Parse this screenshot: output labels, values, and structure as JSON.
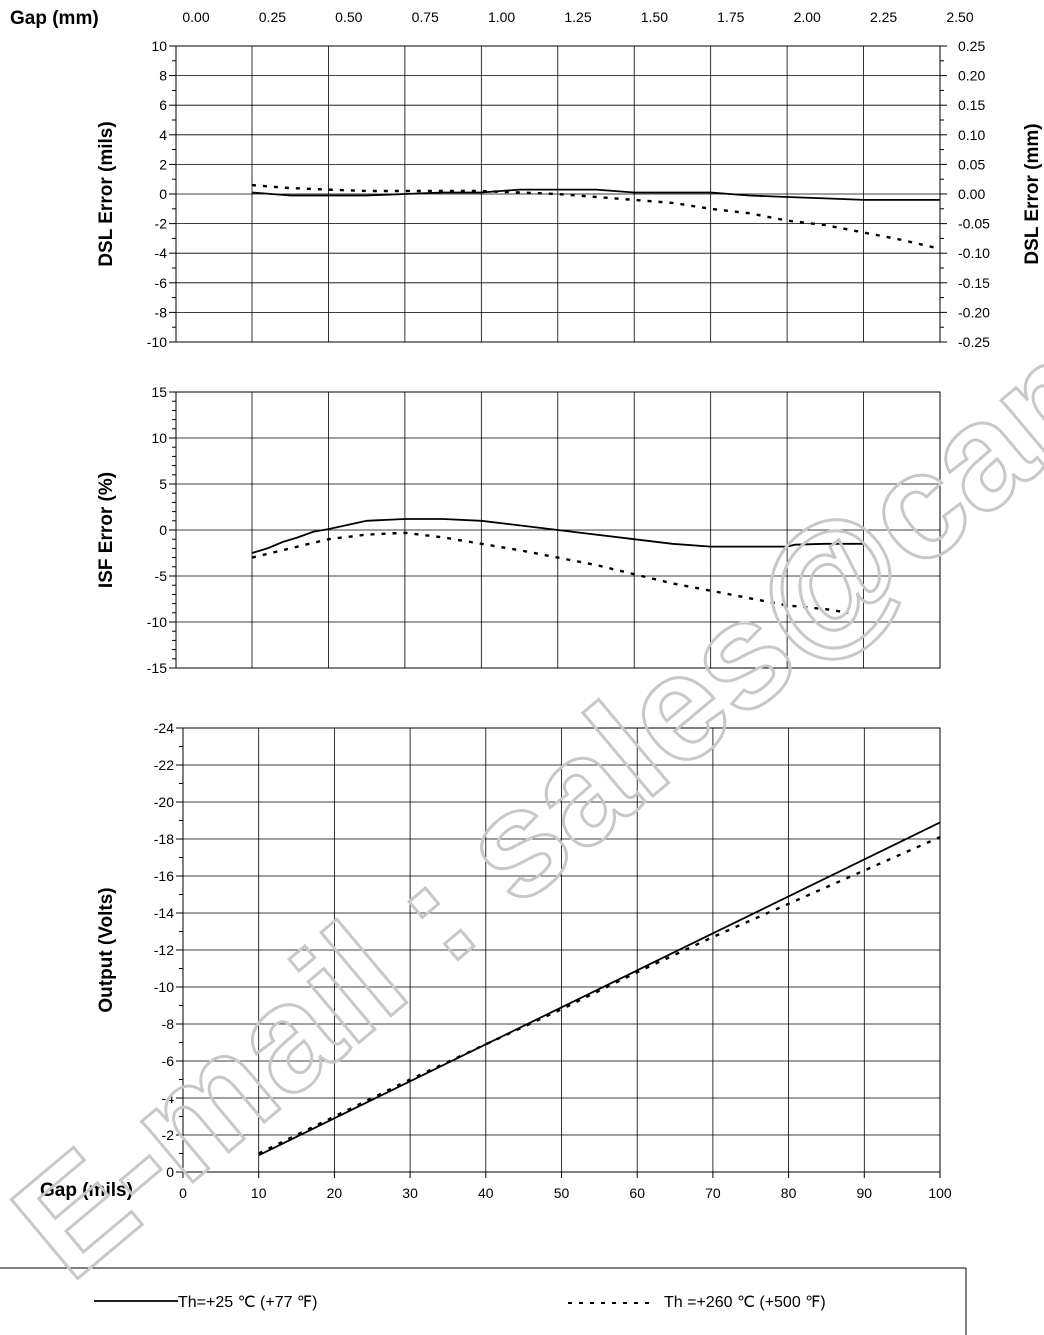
{
  "watermark": "E-mail : sales@cambia.cn",
  "chart_data": [
    {
      "type": "line",
      "panel": "dsl-error",
      "top_axis_title": "Gap (mm)",
      "top_ticks": [
        "0.00",
        "0.25",
        "0.50",
        "0.75",
        "1.00",
        "1.25",
        "1.50",
        "1.75",
        "2.00",
        "2.25",
        "2.50"
      ],
      "ylabel": "DSL Error (mils)",
      "y2label": "DSL Error (mm)",
      "xlim": [
        0,
        100
      ],
      "ylim": [
        -10,
        10
      ],
      "y_ticks": [
        "10",
        "8",
        "6",
        "4",
        "2",
        "0",
        "-2",
        "-4",
        "-6",
        "-8",
        "-10"
      ],
      "y2_ticks": [
        "0.25",
        "0.20",
        "0.15",
        "0.10",
        "0.05",
        "0.00",
        "-0.05",
        "-0.10",
        "-0.15",
        "-0.20",
        "-0.25"
      ],
      "series": [
        {
          "name": "Th=+25 ℃ (+77 ℉)",
          "style": "solid",
          "x": [
            10,
            15,
            20,
            25,
            30,
            35,
            40,
            45,
            50,
            55,
            60,
            65,
            70,
            75,
            80,
            85,
            90,
            95,
            100
          ],
          "y": [
            0.1,
            -0.1,
            -0.1,
            -0.1,
            0.0,
            0.1,
            0.1,
            0.3,
            0.3,
            0.3,
            0.1,
            0.1,
            0.1,
            -0.1,
            -0.2,
            -0.3,
            -0.4,
            -0.4,
            -0.4
          ]
        },
        {
          "name": "Th =+260 ℃ (+500 ℉)",
          "style": "dotted",
          "x": [
            10,
            15,
            20,
            25,
            30,
            35,
            40,
            45,
            50,
            55,
            60,
            65,
            70,
            75,
            80,
            85,
            90,
            95,
            100
          ],
          "y": [
            0.6,
            0.4,
            0.3,
            0.2,
            0.2,
            0.2,
            0.2,
            0.1,
            0.0,
            -0.2,
            -0.4,
            -0.6,
            -1.0,
            -1.3,
            -1.8,
            -2.1,
            -2.6,
            -3.1,
            -3.7
          ]
        }
      ]
    },
    {
      "type": "line",
      "panel": "isf-error",
      "ylabel": "ISF Error (%)",
      "xlim": [
        0,
        100
      ],
      "ylim": [
        -15,
        15
      ],
      "y_ticks": [
        "15",
        "10",
        "5",
        "0",
        "-5",
        "-10",
        "-15"
      ],
      "series": [
        {
          "name": "Th=+25 ℃ (+77 ℉)",
          "style": "solid",
          "x": [
            10,
            12,
            14,
            16,
            18,
            20,
            25,
            30,
            35,
            40,
            45,
            50,
            55,
            60,
            65,
            70,
            75,
            80,
            81,
            85,
            90
          ],
          "y": [
            -2.5,
            -2.0,
            -1.3,
            -0.8,
            -0.2,
            0.1,
            1.0,
            1.2,
            1.2,
            1.0,
            0.5,
            0.0,
            -0.5,
            -1.0,
            -1.5,
            -1.8,
            -1.8,
            -1.8,
            -1.6,
            -1.5,
            -1.5
          ]
        },
        {
          "name": "Th =+260 ℃ (+500 ℉)",
          "style": "dotted",
          "x": [
            10,
            15,
            20,
            25,
            30,
            35,
            40,
            45,
            50,
            55,
            60,
            65,
            70,
            75,
            80,
            85,
            88
          ],
          "y": [
            -3.0,
            -2.0,
            -1.0,
            -0.5,
            -0.3,
            -0.8,
            -1.5,
            -2.2,
            -3.0,
            -3.8,
            -4.8,
            -5.8,
            -6.6,
            -7.4,
            -8.2,
            -8.6,
            -9.0
          ]
        }
      ]
    },
    {
      "type": "line",
      "panel": "output",
      "xlabel": "Gap (mils)",
      "ylabel": "Output (Volts)",
      "xlim": [
        0,
        100
      ],
      "ylim": [
        0,
        -24
      ],
      "x_ticks": [
        "0",
        "10",
        "20",
        "30",
        "40",
        "50",
        "60",
        "70",
        "80",
        "90",
        "100"
      ],
      "y_ticks": [
        "-24",
        "-22",
        "-20",
        "-18",
        "-16",
        "-14",
        "-12",
        "-10",
        "-8",
        "-6",
        "-4",
        "-2",
        "0"
      ],
      "series": [
        {
          "name": "Th=+25 ℃ (+77 ℉)",
          "style": "solid",
          "x": [
            10,
            100
          ],
          "y": [
            -0.9,
            -18.9
          ]
        },
        {
          "name": "Th =+260 ℃ (+500 ℉)",
          "style": "dotted",
          "x": [
            10,
            20,
            30,
            40,
            50,
            60,
            70,
            80,
            90,
            100
          ],
          "y": [
            -1.0,
            -3.0,
            -5.0,
            -6.9,
            -8.8,
            -10.8,
            -12.7,
            -14.5,
            -16.3,
            -18.1
          ]
        }
      ]
    }
  ],
  "legend": {
    "placement": "bottom",
    "entries": [
      {
        "label": "Th=+25 ℃ (+77 ℉)",
        "style": "solid"
      },
      {
        "label": "Th =+260 ℃ (+500 ℉)",
        "style": "dotted"
      }
    ]
  }
}
